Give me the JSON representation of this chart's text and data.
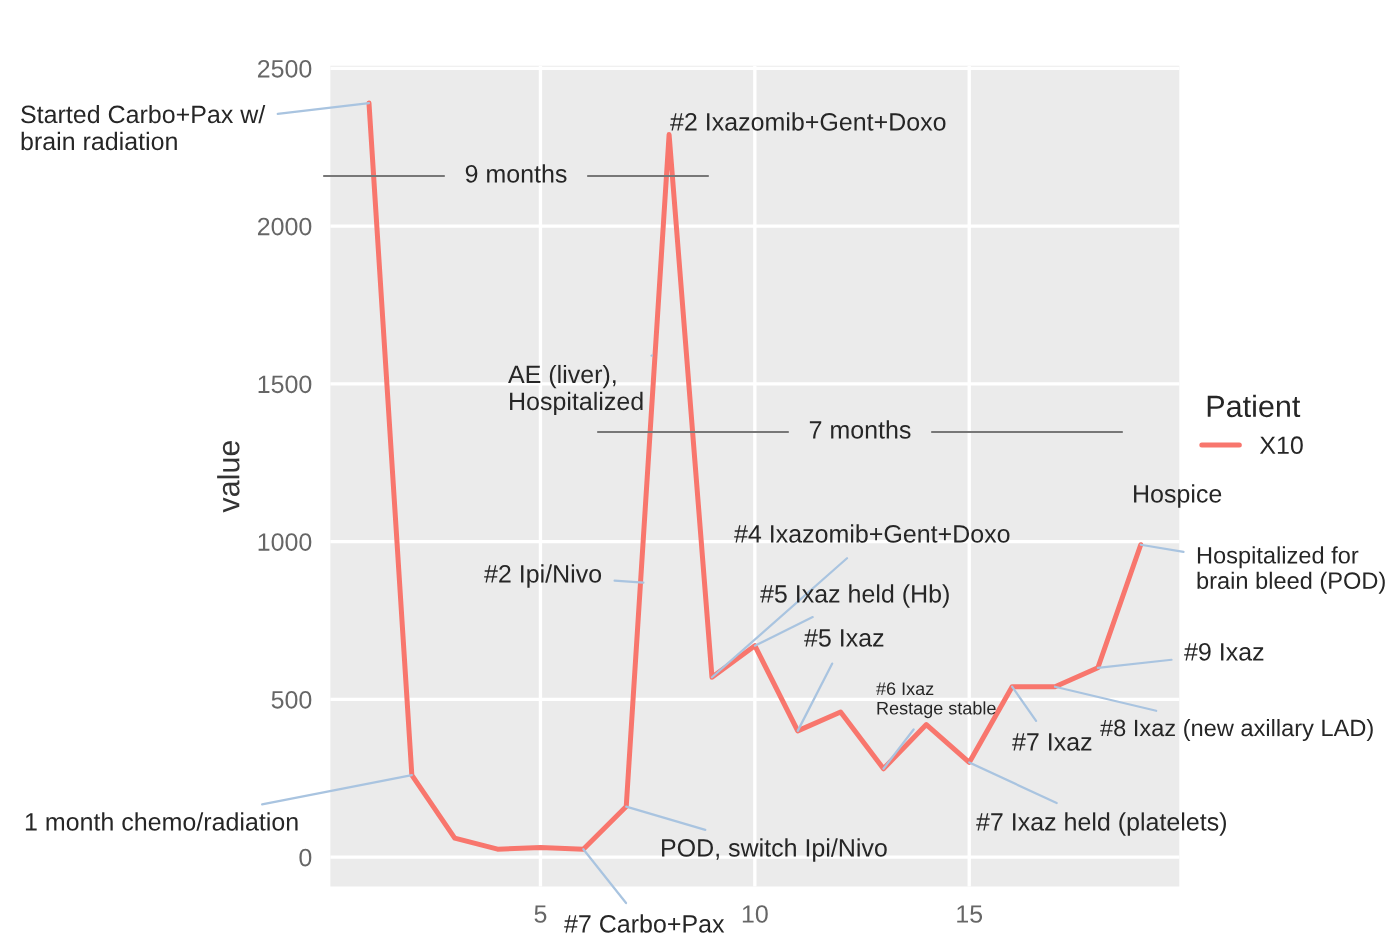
{
  "chart_data": {
    "type": "line",
    "ylabel": "value",
    "legend_title": "Patient",
    "legend": "right",
    "grid": true,
    "x": [
      1,
      2,
      3,
      4,
      5,
      6,
      7,
      8,
      9,
      10,
      11,
      12,
      13,
      14,
      15,
      16,
      17,
      18,
      19
    ],
    "series": [
      {
        "name": "X10",
        "color": "#f8766d",
        "values": [
          2390,
          260,
          60,
          25,
          30,
          25,
          160,
          2290,
          570,
          670,
          400,
          460,
          280,
          420,
          300,
          540,
          540,
          600,
          990
        ]
      }
    ],
    "xlim": [
      0.1,
      19.9
    ],
    "xticks": [
      5,
      10,
      15
    ],
    "ylim": [
      -93,
      2508
    ],
    "yticks": [
      0,
      500,
      1000,
      1500,
      2000,
      2500
    ],
    "annotations": [
      {
        "text": "Started Carbo+Pax w/\nbrain radiation",
        "x": 1,
        "y": 2390
      },
      {
        "text": "1 month chemo/radiation",
        "x": 2,
        "y": 260
      },
      "9 months",
      {
        "text": "#2 Ixazomib+Gent+Doxo",
        "x": 8,
        "y": 2290
      },
      {
        "text": "AE (liver),\nHospitalized",
        "x": 7.6,
        "y": 1590
      },
      {
        "text": "#2 Ipi/Nivo",
        "x": 7.4,
        "y": 870
      },
      {
        "text": "POD, switch Ipi/Nivo",
        "x": 7,
        "y": 160
      },
      {
        "text": "#7 Carbo+Pax",
        "x": 6,
        "y": 25
      },
      "7 months",
      {
        "text": "#4 Ixazomib+Gent+Doxo",
        "x": 9,
        "y": 570
      },
      {
        "text": "#5 Ixaz held (Hb)",
        "x": 10,
        "y": 670
      },
      {
        "text": "#5 Ixaz",
        "x": 11,
        "y": 400
      },
      {
        "text": "#6 Ixaz\nRestage stable",
        "x": 13,
        "y": 280
      },
      {
        "text": "#7 Ixaz held (platelets)",
        "x": 15,
        "y": 300
      },
      {
        "text": "#7 Ixaz",
        "x": 16,
        "y": 540
      },
      {
        "text": "#8 Ixaz (new axillary LAD)",
        "x": 17,
        "y": 540
      },
      {
        "text": "#9 Ixaz",
        "x": 18,
        "y": 600
      },
      {
        "text": "Hospice",
        "x": 19,
        "y": 990
      },
      {
        "text": "Hospitalized for\nbrain bleed (POD)",
        "x": 19,
        "y": 990
      }
    ]
  }
}
